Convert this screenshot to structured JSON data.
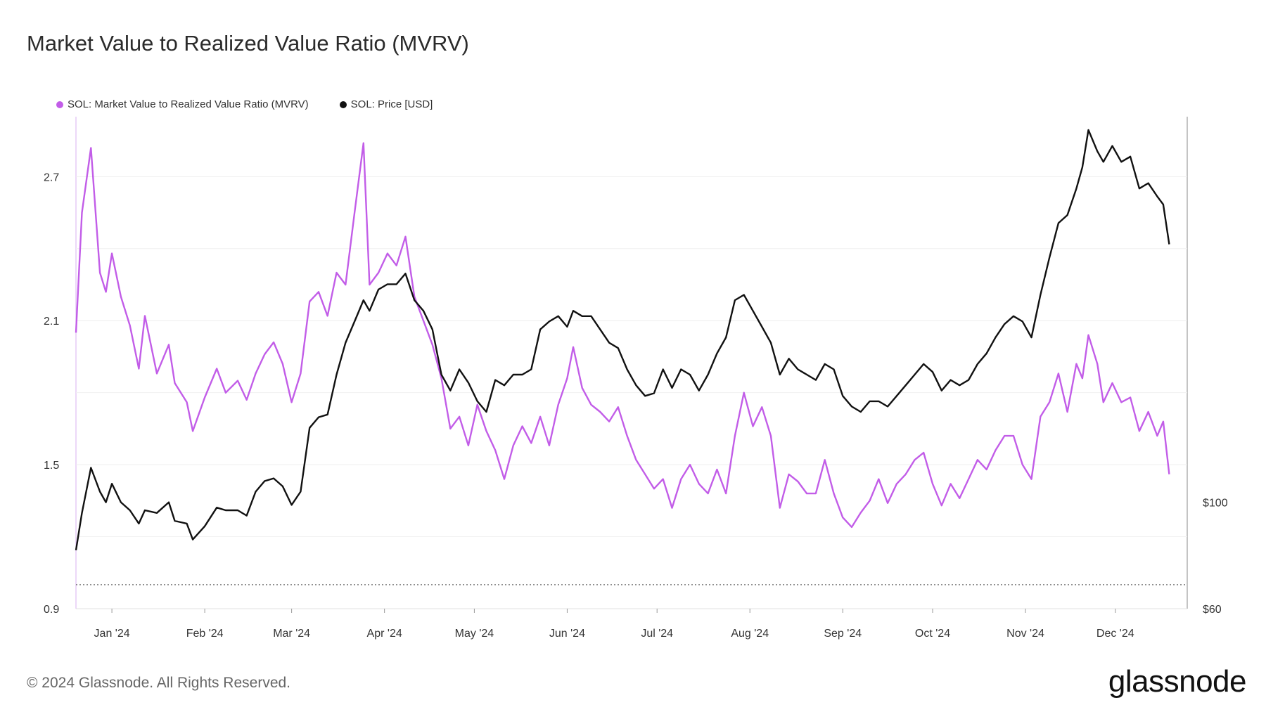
{
  "title": "Market Value to Realized Value Ratio (MVRV)",
  "footer": "© 2024 Glassnode. All Rights Reserved.",
  "brand": "glassnode",
  "chart_data": {
    "type": "line",
    "title": "Market Value to Realized Value Ratio (MVRV)",
    "legend_position": "top-left",
    "x_domain": [
      "2023-12-20",
      "2024-12-25"
    ],
    "x_ticks": [
      "Jan '24",
      "Feb '24",
      "Mar '24",
      "Apr '24",
      "May '24",
      "Jun '24",
      "Jul '24",
      "Aug '24",
      "Sep '24",
      "Oct '24",
      "Nov '24",
      "Dec '24"
    ],
    "y_left": {
      "ticks": [
        "2.7",
        "2.1",
        "1.5",
        "0.9"
      ],
      "range": [
        0.9,
        2.95
      ],
      "reference_line": 1.0
    },
    "y_right": {
      "ticks": [
        "$100",
        "$60"
      ],
      "range": [
        60,
        245
      ]
    },
    "series": [
      {
        "name": "SOL: Market Value to Realized Value Ratio (MVRV)",
        "color": "#c25de8",
        "axis": "left",
        "points": [
          [
            "2023-12-20",
            2.05
          ],
          [
            "2023-12-22",
            2.55
          ],
          [
            "2023-12-25",
            2.82
          ],
          [
            "2023-12-28",
            2.3
          ],
          [
            "2023-12-30",
            2.22
          ],
          [
            "2024-01-01",
            2.38
          ],
          [
            "2024-01-04",
            2.2
          ],
          [
            "2024-01-07",
            2.08
          ],
          [
            "2024-01-10",
            1.9
          ],
          [
            "2024-01-12",
            2.12
          ],
          [
            "2024-01-16",
            1.88
          ],
          [
            "2024-01-20",
            2.0
          ],
          [
            "2024-01-22",
            1.84
          ],
          [
            "2024-01-26",
            1.76
          ],
          [
            "2024-01-28",
            1.64
          ],
          [
            "2024-02-01",
            1.78
          ],
          [
            "2024-02-05",
            1.9
          ],
          [
            "2024-02-08",
            1.8
          ],
          [
            "2024-02-12",
            1.85
          ],
          [
            "2024-02-15",
            1.77
          ],
          [
            "2024-02-18",
            1.88
          ],
          [
            "2024-02-21",
            1.96
          ],
          [
            "2024-02-24",
            2.01
          ],
          [
            "2024-02-27",
            1.92
          ],
          [
            "2024-03-01",
            1.76
          ],
          [
            "2024-03-04",
            1.88
          ],
          [
            "2024-03-07",
            2.18
          ],
          [
            "2024-03-10",
            2.22
          ],
          [
            "2024-03-13",
            2.12
          ],
          [
            "2024-03-16",
            2.3
          ],
          [
            "2024-03-19",
            2.25
          ],
          [
            "2024-03-22",
            2.55
          ],
          [
            "2024-03-25",
            2.84
          ],
          [
            "2024-03-27",
            2.25
          ],
          [
            "2024-03-30",
            2.3
          ],
          [
            "2024-04-02",
            2.38
          ],
          [
            "2024-04-05",
            2.33
          ],
          [
            "2024-04-08",
            2.45
          ],
          [
            "2024-04-11",
            2.2
          ],
          [
            "2024-04-14",
            2.1
          ],
          [
            "2024-04-17",
            2.0
          ],
          [
            "2024-04-20",
            1.86
          ],
          [
            "2024-04-23",
            1.65
          ],
          [
            "2024-04-26",
            1.7
          ],
          [
            "2024-04-29",
            1.58
          ],
          [
            "2024-05-02",
            1.75
          ],
          [
            "2024-05-05",
            1.64
          ],
          [
            "2024-05-08",
            1.56
          ],
          [
            "2024-05-11",
            1.44
          ],
          [
            "2024-05-14",
            1.58
          ],
          [
            "2024-05-17",
            1.66
          ],
          [
            "2024-05-20",
            1.59
          ],
          [
            "2024-05-23",
            1.7
          ],
          [
            "2024-05-26",
            1.58
          ],
          [
            "2024-05-29",
            1.75
          ],
          [
            "2024-06-01",
            1.86
          ],
          [
            "2024-06-03",
            1.99
          ],
          [
            "2024-06-06",
            1.82
          ],
          [
            "2024-06-09",
            1.75
          ],
          [
            "2024-06-12",
            1.72
          ],
          [
            "2024-06-15",
            1.68
          ],
          [
            "2024-06-18",
            1.74
          ],
          [
            "2024-06-21",
            1.62
          ],
          [
            "2024-06-24",
            1.52
          ],
          [
            "2024-06-27",
            1.46
          ],
          [
            "2024-06-30",
            1.4
          ],
          [
            "2024-07-03",
            1.44
          ],
          [
            "2024-07-06",
            1.32
          ],
          [
            "2024-07-09",
            1.44
          ],
          [
            "2024-07-12",
            1.5
          ],
          [
            "2024-07-15",
            1.42
          ],
          [
            "2024-07-18",
            1.38
          ],
          [
            "2024-07-21",
            1.48
          ],
          [
            "2024-07-24",
            1.38
          ],
          [
            "2024-07-27",
            1.62
          ],
          [
            "2024-07-30",
            1.8
          ],
          [
            "2024-08-02",
            1.66
          ],
          [
            "2024-08-05",
            1.74
          ],
          [
            "2024-08-08",
            1.62
          ],
          [
            "2024-08-11",
            1.32
          ],
          [
            "2024-08-14",
            1.46
          ],
          [
            "2024-08-17",
            1.43
          ],
          [
            "2024-08-20",
            1.38
          ],
          [
            "2024-08-23",
            1.38
          ],
          [
            "2024-08-26",
            1.52
          ],
          [
            "2024-08-29",
            1.38
          ],
          [
            "2024-09-01",
            1.28
          ],
          [
            "2024-09-04",
            1.24
          ],
          [
            "2024-09-07",
            1.3
          ],
          [
            "2024-09-10",
            1.35
          ],
          [
            "2024-09-13",
            1.44
          ],
          [
            "2024-09-16",
            1.34
          ],
          [
            "2024-09-19",
            1.42
          ],
          [
            "2024-09-22",
            1.46
          ],
          [
            "2024-09-25",
            1.52
          ],
          [
            "2024-09-28",
            1.55
          ],
          [
            "2024-10-01",
            1.42
          ],
          [
            "2024-10-04",
            1.33
          ],
          [
            "2024-10-07",
            1.42
          ],
          [
            "2024-10-10",
            1.36
          ],
          [
            "2024-10-13",
            1.44
          ],
          [
            "2024-10-16",
            1.52
          ],
          [
            "2024-10-19",
            1.48
          ],
          [
            "2024-10-22",
            1.56
          ],
          [
            "2024-10-25",
            1.62
          ],
          [
            "2024-10-28",
            1.62
          ],
          [
            "2024-10-31",
            1.5
          ],
          [
            "2024-11-03",
            1.44
          ],
          [
            "2024-11-06",
            1.7
          ],
          [
            "2024-11-09",
            1.76
          ],
          [
            "2024-11-12",
            1.88
          ],
          [
            "2024-11-15",
            1.72
          ],
          [
            "2024-11-18",
            1.92
          ],
          [
            "2024-11-20",
            1.86
          ],
          [
            "2024-11-22",
            2.04
          ],
          [
            "2024-11-25",
            1.92
          ],
          [
            "2024-11-27",
            1.76
          ],
          [
            "2024-11-30",
            1.84
          ],
          [
            "2024-12-03",
            1.76
          ],
          [
            "2024-12-06",
            1.78
          ],
          [
            "2024-12-09",
            1.64
          ],
          [
            "2024-12-12",
            1.72
          ],
          [
            "2024-12-15",
            1.62
          ],
          [
            "2024-12-17",
            1.68
          ],
          [
            "2024-12-19",
            1.46
          ]
        ]
      },
      {
        "name": "SOL: Price [USD]",
        "color": "#111111",
        "axis": "right",
        "points": [
          [
            "2023-12-20",
            82
          ],
          [
            "2023-12-22",
            96
          ],
          [
            "2023-12-25",
            113
          ],
          [
            "2023-12-28",
            104
          ],
          [
            "2023-12-30",
            100
          ],
          [
            "2024-01-01",
            107
          ],
          [
            "2024-01-04",
            100
          ],
          [
            "2024-01-07",
            97
          ],
          [
            "2024-01-10",
            92
          ],
          [
            "2024-01-12",
            97
          ],
          [
            "2024-01-16",
            96
          ],
          [
            "2024-01-20",
            100
          ],
          [
            "2024-01-22",
            93
          ],
          [
            "2024-01-26",
            92
          ],
          [
            "2024-01-28",
            86
          ],
          [
            "2024-02-01",
            91
          ],
          [
            "2024-02-05",
            98
          ],
          [
            "2024-02-08",
            97
          ],
          [
            "2024-02-12",
            97
          ],
          [
            "2024-02-15",
            95
          ],
          [
            "2024-02-18",
            104
          ],
          [
            "2024-02-21",
            108
          ],
          [
            "2024-02-24",
            109
          ],
          [
            "2024-02-27",
            106
          ],
          [
            "2024-03-01",
            99
          ],
          [
            "2024-03-04",
            104
          ],
          [
            "2024-03-07",
            128
          ],
          [
            "2024-03-10",
            132
          ],
          [
            "2024-03-13",
            133
          ],
          [
            "2024-03-16",
            148
          ],
          [
            "2024-03-19",
            160
          ],
          [
            "2024-03-22",
            168
          ],
          [
            "2024-03-25",
            176
          ],
          [
            "2024-03-27",
            172
          ],
          [
            "2024-03-30",
            180
          ],
          [
            "2024-04-02",
            182
          ],
          [
            "2024-04-05",
            182
          ],
          [
            "2024-04-08",
            186
          ],
          [
            "2024-04-11",
            176
          ],
          [
            "2024-04-14",
            172
          ],
          [
            "2024-04-17",
            165
          ],
          [
            "2024-04-20",
            148
          ],
          [
            "2024-04-23",
            142
          ],
          [
            "2024-04-26",
            150
          ],
          [
            "2024-04-29",
            145
          ],
          [
            "2024-05-02",
            138
          ],
          [
            "2024-05-05",
            134
          ],
          [
            "2024-05-08",
            146
          ],
          [
            "2024-05-11",
            144
          ],
          [
            "2024-05-14",
            148
          ],
          [
            "2024-05-17",
            148
          ],
          [
            "2024-05-20",
            150
          ],
          [
            "2024-05-23",
            165
          ],
          [
            "2024-05-26",
            168
          ],
          [
            "2024-05-29",
            170
          ],
          [
            "2024-06-01",
            166
          ],
          [
            "2024-06-03",
            172
          ],
          [
            "2024-06-06",
            170
          ],
          [
            "2024-06-09",
            170
          ],
          [
            "2024-06-12",
            165
          ],
          [
            "2024-06-15",
            160
          ],
          [
            "2024-06-18",
            158
          ],
          [
            "2024-06-21",
            150
          ],
          [
            "2024-06-24",
            144
          ],
          [
            "2024-06-27",
            140
          ],
          [
            "2024-06-30",
            141
          ],
          [
            "2024-07-03",
            150
          ],
          [
            "2024-07-06",
            143
          ],
          [
            "2024-07-09",
            150
          ],
          [
            "2024-07-12",
            148
          ],
          [
            "2024-07-15",
            142
          ],
          [
            "2024-07-18",
            148
          ],
          [
            "2024-07-21",
            156
          ],
          [
            "2024-07-24",
            162
          ],
          [
            "2024-07-27",
            176
          ],
          [
            "2024-07-30",
            178
          ],
          [
            "2024-08-02",
            172
          ],
          [
            "2024-08-05",
            166
          ],
          [
            "2024-08-08",
            160
          ],
          [
            "2024-08-11",
            148
          ],
          [
            "2024-08-14",
            154
          ],
          [
            "2024-08-17",
            150
          ],
          [
            "2024-08-20",
            148
          ],
          [
            "2024-08-23",
            146
          ],
          [
            "2024-08-26",
            152
          ],
          [
            "2024-08-29",
            150
          ],
          [
            "2024-09-01",
            140
          ],
          [
            "2024-09-04",
            136
          ],
          [
            "2024-09-07",
            134
          ],
          [
            "2024-09-10",
            138
          ],
          [
            "2024-09-13",
            138
          ],
          [
            "2024-09-16",
            136
          ],
          [
            "2024-09-19",
            140
          ],
          [
            "2024-09-22",
            144
          ],
          [
            "2024-09-25",
            148
          ],
          [
            "2024-09-28",
            152
          ],
          [
            "2024-10-01",
            149
          ],
          [
            "2024-10-04",
            142
          ],
          [
            "2024-10-07",
            146
          ],
          [
            "2024-10-10",
            144
          ],
          [
            "2024-10-13",
            146
          ],
          [
            "2024-10-16",
            152
          ],
          [
            "2024-10-19",
            156
          ],
          [
            "2024-10-22",
            162
          ],
          [
            "2024-10-25",
            167
          ],
          [
            "2024-10-28",
            170
          ],
          [
            "2024-10-31",
            168
          ],
          [
            "2024-11-03",
            162
          ],
          [
            "2024-11-06",
            178
          ],
          [
            "2024-11-09",
            192
          ],
          [
            "2024-11-12",
            205
          ],
          [
            "2024-11-15",
            208
          ],
          [
            "2024-11-18",
            218
          ],
          [
            "2024-11-20",
            226
          ],
          [
            "2024-11-22",
            240
          ],
          [
            "2024-11-25",
            232
          ],
          [
            "2024-11-27",
            228
          ],
          [
            "2024-11-30",
            234
          ],
          [
            "2024-12-03",
            228
          ],
          [
            "2024-12-06",
            230
          ],
          [
            "2024-12-09",
            218
          ],
          [
            "2024-12-12",
            220
          ],
          [
            "2024-12-15",
            215
          ],
          [
            "2024-12-17",
            212
          ],
          [
            "2024-12-19",
            197
          ]
        ]
      }
    ]
  }
}
